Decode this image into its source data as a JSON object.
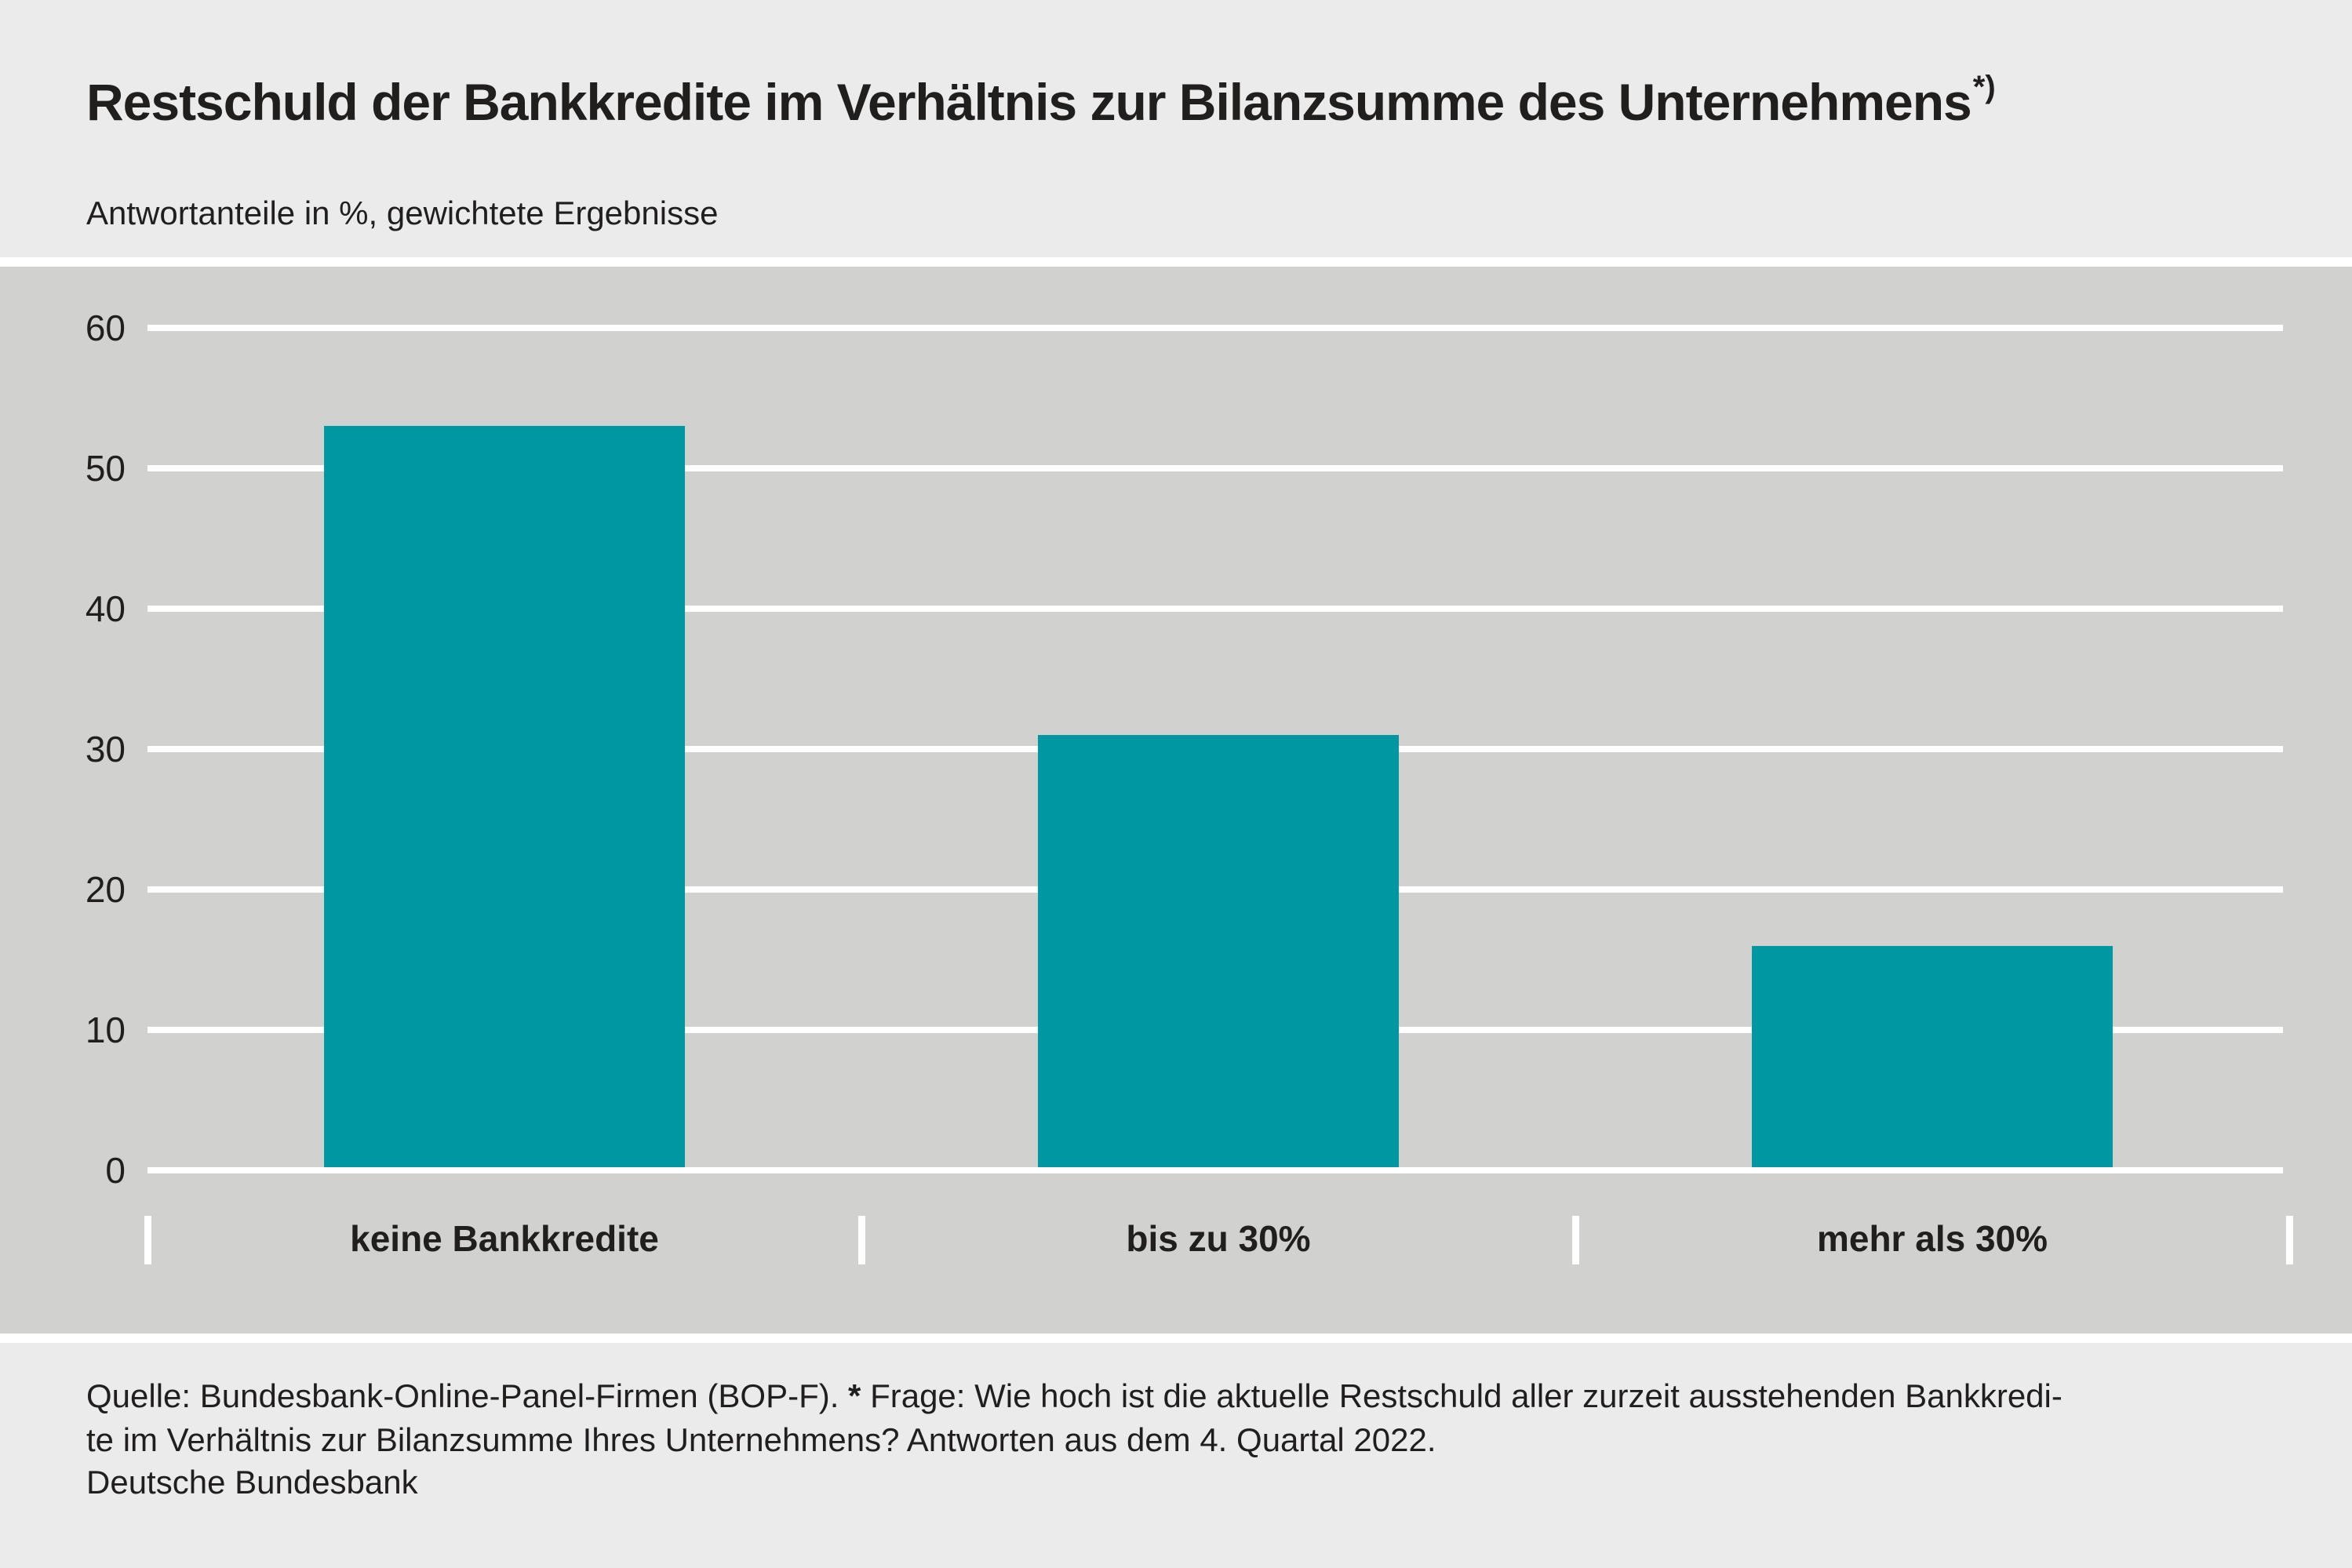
{
  "title": {
    "text": "Restschuld der Bankkredite im Verhältnis zur Bilanzsumme des Unternehmens",
    "footnote_marker": "*)"
  },
  "subtitle": "Antwortanteile in %, gewichtete Ergebnisse",
  "chart_data": {
    "type": "bar",
    "title": "Restschuld der Bankkredite im Verhältnis zur Bilanzsumme des Unternehmens*)",
    "subtitle": "Antwortanteile in %, gewichtete Ergebnisse",
    "categories": [
      "keine Bankkredite",
      "bis zu 30%",
      "mehr als 30%"
    ],
    "values": [
      53,
      31,
      16
    ],
    "xlabel": "",
    "ylabel": "Antwortanteile in %",
    "ylim": [
      0,
      60
    ],
    "yticks": [
      0,
      10,
      20,
      30,
      40,
      50,
      60
    ],
    "grid": true,
    "gridline_color": "#ffffff",
    "bar_color": "#0096a2",
    "plot_background": "#d1d1d0",
    "page_background": "#ebebeb",
    "legend": "none"
  },
  "footer": {
    "source_prefix": "Quelle: Bundesbank-Online-Panel-Firmen (BOP-F). ",
    "star": "*",
    "line1_rest": " Frage: Wie hoch ist die aktuelle Restschuld aller zurzeit ausstehenden Bankkredi-",
    "line2": "te im Verhältnis zur Bilanzsumme Ihres Unternehmens? Antworten aus dem 4. Quartal 2022.",
    "brand": "Deutsche Bundesbank"
  }
}
